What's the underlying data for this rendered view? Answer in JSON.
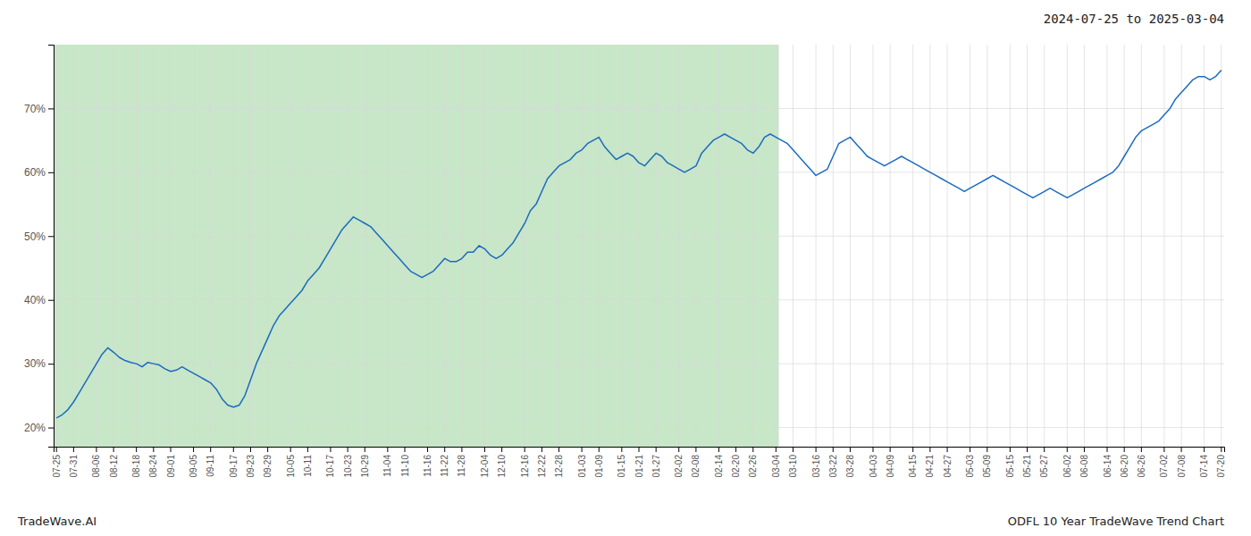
{
  "chart_data": {
    "type": "line",
    "title": "2024-07-25 to 2025-03-04",
    "annotations": [
      "TradeWave.AI",
      "ODFL 10 Year TradeWave Trend Chart"
    ],
    "color": "#1a6bbf",
    "grid": true,
    "highlight": {
      "to": "03-04",
      "color": "#c8e6c8"
    },
    "ylim": [
      17,
      80
    ],
    "yticks": [
      {
        "value": 20,
        "label": "20%"
      },
      {
        "value": 30,
        "label": "30%"
      },
      {
        "value": 40,
        "label": "40%"
      },
      {
        "value": 50,
        "label": "50%"
      },
      {
        "value": 60,
        "label": "60%"
      },
      {
        "value": 70,
        "label": "70%"
      }
    ],
    "categories": [
      "07-25",
      null,
      null,
      "07-31",
      null,
      null,
      null,
      "08-06",
      null,
      null,
      "08-12",
      null,
      null,
      null,
      "08-18",
      null,
      null,
      "08-24",
      null,
      null,
      "09-01",
      null,
      null,
      null,
      "09-05",
      null,
      null,
      "09-11",
      null,
      null,
      null,
      "09-17",
      null,
      null,
      "09-23",
      null,
      null,
      "09-29",
      null,
      null,
      null,
      "10-05",
      null,
      null,
      "10-11",
      null,
      null,
      null,
      "10-17",
      null,
      null,
      "10-23",
      null,
      null,
      "10-29",
      null,
      null,
      null,
      "11-04",
      null,
      null,
      "11-10",
      null,
      null,
      null,
      "11-16",
      null,
      null,
      "11-22",
      null,
      null,
      "11-28",
      null,
      null,
      null,
      "12-04",
      null,
      null,
      "12-10",
      null,
      null,
      null,
      "12-16",
      null,
      null,
      "12-22",
      null,
      null,
      "12-28",
      null,
      null,
      null,
      "01-03",
      null,
      null,
      "01-09",
      null,
      null,
      null,
      "01-15",
      null,
      null,
      "01-21",
      null,
      null,
      "01-27",
      null,
      null,
      null,
      "02-02",
      null,
      null,
      "02-08",
      null,
      null,
      null,
      "02-14",
      null,
      null,
      "02-20",
      null,
      null,
      "02-26",
      null,
      null,
      null,
      "03-04",
      null,
      null,
      "03-10",
      null,
      null,
      null,
      "03-16",
      null,
      null,
      "03-22",
      null,
      null,
      "03-28",
      null,
      null,
      null,
      "04-03",
      null,
      null,
      "04-09",
      null,
      null,
      null,
      "04-15",
      null,
      null,
      "04-21",
      null,
      null,
      "04-27",
      null,
      null,
      null,
      "05-03",
      null,
      null,
      "05-09",
      null,
      null,
      null,
      "05-15",
      null,
      null,
      "05-21",
      null,
      null,
      "05-27",
      null,
      null,
      null,
      "06-02",
      null,
      null,
      "06-08",
      null,
      null,
      null,
      "06-14",
      null,
      null,
      "06-20",
      null,
      null,
      "06-26",
      null,
      null,
      null,
      "07-02",
      null,
      null,
      "07-08",
      null,
      null,
      null,
      "07-14",
      null,
      null,
      "07-20"
    ],
    "values": [
      21.5,
      22.0,
      22.8,
      24.0,
      25.5,
      27.0,
      28.5,
      30.0,
      31.5,
      32.5,
      31.8,
      31.0,
      30.5,
      30.2,
      30.0,
      29.5,
      30.2,
      30.0,
      29.8,
      29.2,
      28.8,
      29.0,
      29.5,
      29.0,
      28.5,
      28.0,
      27.5,
      27.0,
      26.0,
      24.5,
      23.5,
      23.2,
      23.5,
      25.0,
      27.5,
      30.0,
      32.0,
      34.0,
      36.0,
      37.5,
      38.5,
      39.5,
      40.5,
      41.5,
      43.0,
      44.0,
      45.0,
      46.5,
      48.0,
      49.5,
      51.0,
      52.0,
      53.0,
      52.5,
      52.0,
      51.5,
      50.5,
      49.5,
      48.5,
      47.5,
      46.5,
      45.5,
      44.5,
      44.0,
      43.5,
      44.0,
      44.5,
      45.5,
      46.5,
      46.0,
      46.0,
      46.5,
      47.5,
      47.5,
      48.5,
      48.0,
      47.0,
      46.5,
      47.0,
      48.0,
      49.0,
      50.5,
      52.0,
      54.0,
      55.0,
      57.0,
      59.0,
      60.0,
      61.0,
      61.5,
      62.0,
      63.0,
      63.5,
      64.5,
      65.0,
      65.5,
      64.0,
      63.0,
      62.0,
      62.5,
      63.0,
      62.5,
      61.5,
      61.0,
      62.0,
      63.0,
      62.5,
      61.5,
      61.0,
      60.5,
      60.0,
      60.5,
      61.0,
      63.0,
      64.0,
      65.0,
      65.5,
      66.0,
      65.5,
      65.0,
      64.5,
      63.5,
      63.0,
      64.0,
      65.5,
      66.0,
      65.5,
      65.0,
      64.5,
      63.5,
      62.5,
      61.5,
      60.5,
      59.5,
      60.0,
      60.5,
      62.5,
      64.5,
      65.0,
      65.5,
      64.5,
      63.5,
      62.5,
      62.0,
      61.5,
      61.0,
      61.5,
      62.0,
      62.5,
      62.0,
      61.5,
      61.0,
      60.5,
      60.0,
      59.5,
      59.0,
      58.5,
      58.0,
      57.5,
      57.0,
      57.5,
      58.0,
      58.5,
      59.0,
      59.5,
      59.0,
      58.5,
      58.0,
      57.5,
      57.0,
      56.5,
      56.0,
      56.5,
      57.0,
      57.5,
      57.0,
      56.5,
      56.0,
      56.5,
      57.0,
      57.5,
      58.0,
      58.5,
      59.0,
      59.5,
      60.0,
      61.0,
      62.5,
      64.0,
      65.5,
      66.5,
      67.0,
      67.5,
      68.0,
      69.0,
      70.0,
      71.5,
      72.5,
      73.5,
      74.5,
      75.0,
      75.0,
      74.5,
      75.0,
      76.0
    ]
  }
}
